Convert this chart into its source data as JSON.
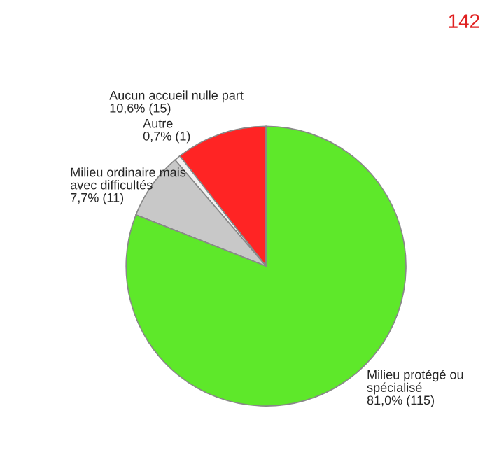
{
  "chart_data": {
    "type": "pie",
    "categories": [
      "Aucun accueil nulle part",
      "Autre",
      "Milieu ordinaire mais\navec difficultés",
      "Milieu protégé ou\nspécialisé"
    ],
    "values": [
      15,
      1,
      11,
      115
    ],
    "value_labels": [
      "10,6% (15)",
      "0,7% (1)",
      "7,7% (11)",
      "81,0% (115)"
    ],
    "colors": [
      "#ff2424",
      "#f2f2f2",
      "#c8c8c8",
      "#5ee82a"
    ],
    "annotations": [
      "142"
    ]
  }
}
